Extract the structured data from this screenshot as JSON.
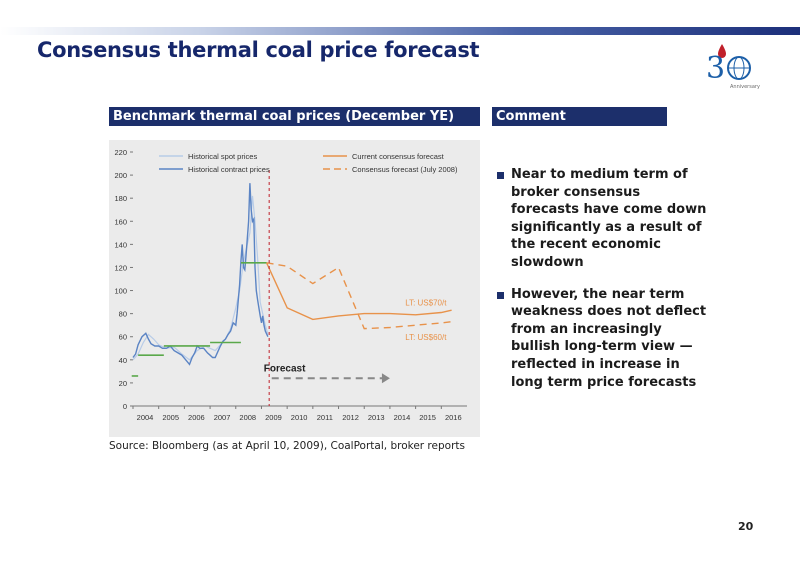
{
  "slide": {
    "title": "Consensus thermal coal price forecast",
    "page_number": "20",
    "logo_text": "Anniversary",
    "colors": {
      "header_bg": "#1c2f6b",
      "title": "#16276b",
      "spot": "#b8cce8",
      "contract": "#5b84c4",
      "consensus": "#e8924a",
      "benchmark": "#5aa84a",
      "forecast_line": "#c0202a"
    }
  },
  "chart_panel": {
    "header": "Benchmark thermal coal prices (December YE)",
    "source": "Source: Bloomberg (as at April 10, 2009), CoalPortal, broker reports"
  },
  "comment_panel": {
    "header": "Comment",
    "bullets": [
      "Near to medium term of broker consensus forecasts have come down significantly as a result of the recent economic slowdown",
      "However, the near term weakness does not deflect from an increasingly bullish long-term view — reflected in increase in long term price forecasts"
    ]
  },
  "chart_data": {
    "type": "line",
    "title": "",
    "xlabel": "",
    "ylabel": "",
    "x_ticks": [
      "2004",
      "2005",
      "2006",
      "2007",
      "2008",
      "2009",
      "2010",
      "2011",
      "2012",
      "2013",
      "2014",
      "2015",
      "2016"
    ],
    "ylim": [
      0,
      220
    ],
    "y_ticks": [
      0,
      20,
      40,
      60,
      80,
      100,
      120,
      140,
      160,
      180,
      200,
      220
    ],
    "grid": false,
    "legend": {
      "placement": "top",
      "entries": [
        {
          "label": "Historical spot prices",
          "style": "solid-light-blue"
        },
        {
          "label": "Historical contract prices",
          "style": "solid-blue"
        },
        {
          "label": "Current consensus forecast",
          "style": "solid-orange"
        },
        {
          "label": "Consensus forecast (July 2008)",
          "style": "dashed-orange"
        }
      ]
    },
    "series": [
      {
        "name": "Historical spot prices",
        "x": [
          2004.0,
          2004.2,
          2004.4,
          2004.6,
          2004.8,
          2005.0,
          2005.3,
          2005.6,
          2005.9,
          2006.2,
          2006.5,
          2006.8,
          2007.0,
          2007.2,
          2007.4,
          2007.6,
          2007.8,
          2008.0,
          2008.15,
          2008.3,
          2008.45,
          2008.55,
          2008.65,
          2008.75,
          2008.85,
          2008.95,
          2009.05,
          2009.15,
          2009.25
        ],
        "values": [
          40,
          45,
          55,
          62,
          58,
          53,
          50,
          51,
          45,
          40,
          48,
          52,
          50,
          48,
          53,
          58,
          67,
          85,
          100,
          125,
          140,
          150,
          182,
          160,
          128,
          90,
          80,
          70,
          62
        ]
      },
      {
        "name": "Historical contract prices",
        "x": [
          2004.0,
          2004.1,
          2004.2,
          2004.35,
          2004.5,
          2004.6,
          2004.7,
          2004.85,
          2005.0,
          2005.15,
          2005.3,
          2005.45,
          2005.6,
          2005.75,
          2005.9,
          2006.05,
          2006.2,
          2006.3,
          2006.4,
          2006.5,
          2006.6,
          2006.75,
          2006.9,
          2007.0,
          2007.1,
          2007.2,
          2007.3,
          2007.4,
          2007.5,
          2007.6,
          2007.7,
          2007.8,
          2007.9,
          2008.0,
          2008.05,
          2008.1,
          2008.15,
          2008.2,
          2008.25,
          2008.3,
          2008.35,
          2008.4,
          2008.45,
          2008.5,
          2008.55,
          2008.6,
          2008.65,
          2008.7,
          2008.75,
          2008.8,
          2008.85,
          2008.9,
          2008.95,
          2009.0,
          2009.05,
          2009.1,
          2009.15,
          2009.25
        ],
        "values": [
          42,
          45,
          53,
          60,
          63,
          58,
          54,
          52,
          52,
          50,
          50,
          52,
          48,
          46,
          44,
          40,
          36,
          42,
          46,
          52,
          50,
          50,
          46,
          44,
          42,
          42,
          47,
          52,
          56,
          58,
          62,
          65,
          72,
          70,
          80,
          92,
          105,
          125,
          140,
          120,
          118,
          130,
          145,
          160,
          193,
          170,
          160,
          162,
          120,
          100,
          92,
          85,
          78,
          72,
          78,
          70,
          65,
          60
        ]
      },
      {
        "name": "Current consensus forecast",
        "x": [
          2009.2,
          2010,
          2011,
          2012,
          2013,
          2014,
          2015,
          2016,
          2016.4
        ],
        "values": [
          124,
          85,
          75,
          78,
          80,
          80,
          79,
          81,
          83
        ]
      },
      {
        "name": "Consensus forecast (July 2008)",
        "x": [
          2009.2,
          2010,
          2011,
          2012,
          2013,
          2014,
          2015,
          2016,
          2016.4
        ],
        "values": [
          124,
          121,
          106,
          120,
          67,
          68,
          70,
          72,
          73
        ]
      }
    ],
    "benchmark_levels": [
      {
        "x0": 2003.95,
        "x1": 2004.2,
        "value": 26
      },
      {
        "x0": 2004.2,
        "x1": 2005.2,
        "value": 44
      },
      {
        "x0": 2005.2,
        "x1": 2007.0,
        "value": 52
      },
      {
        "x0": 2007.0,
        "x1": 2008.2,
        "value": 55
      },
      {
        "x0": 2008.2,
        "x1": 2009.2,
        "value": 124
      }
    ],
    "forecast_divider_x": 2009.3,
    "forecast_arrow": {
      "x0": 2009.4,
      "x1": 2014.0,
      "value": 24
    },
    "annotations": [
      {
        "text": "Forecast",
        "x": 2009.9,
        "value": 30
      },
      {
        "text": "LT: US$70/t",
        "x": 2016.2,
        "value": 87
      },
      {
        "text": "LT: US$60/t",
        "x": 2016.2,
        "value": 57
      }
    ]
  }
}
